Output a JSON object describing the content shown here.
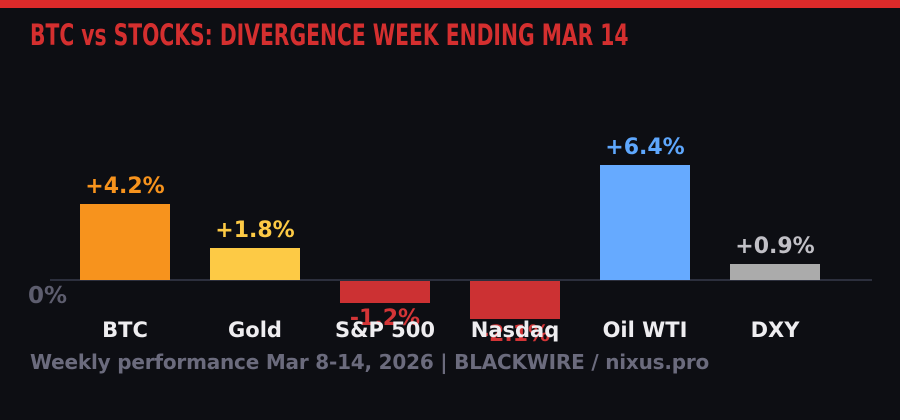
{
  "page": {
    "colors": {
      "background": "#0d0e13",
      "accent_bar": "#dc2a2a",
      "title": "#d42f2f",
      "zero_line": "#2c2f3d",
      "zero_label": "#5d5d6e",
      "category_label": "#eeedf0",
      "footer": "#6b6b7d"
    }
  },
  "chart_data": {
    "type": "bar",
    "title": "BTC vs STOCKS: DIVERGENCE WEEK ENDING MAR 14",
    "categories": [
      "BTC",
      "Gold",
      "S&P 500",
      "Nasdaq",
      "Oil WTI",
      "DXY"
    ],
    "values": [
      4.2,
      1.8,
      -1.2,
      -2.1,
      6.4,
      0.9
    ],
    "value_labels": [
      "+4.2%",
      "+1.8%",
      "-1.2%",
      "-2.1%",
      "+6.4%",
      "+0.9%"
    ],
    "bar_colors": [
      "#f7931d",
      "#fdca45",
      "#cc3133",
      "#cc3133",
      "#66aaff",
      "#ababab"
    ],
    "value_label_colors": [
      "#f7931d",
      "#fdca45",
      "#d43537",
      "#d43537",
      "#5ea7fd",
      "#c1c0c6"
    ],
    "unit": "%",
    "baseline_label": "0%",
    "xlabel": "",
    "ylabel": "",
    "ylim": [
      -2.5,
      7
    ],
    "grid": false,
    "legend": false
  },
  "footer": {
    "text": "Weekly performance Mar 8-14, 2026 | BLACKWIRE / nixus.pro"
  }
}
